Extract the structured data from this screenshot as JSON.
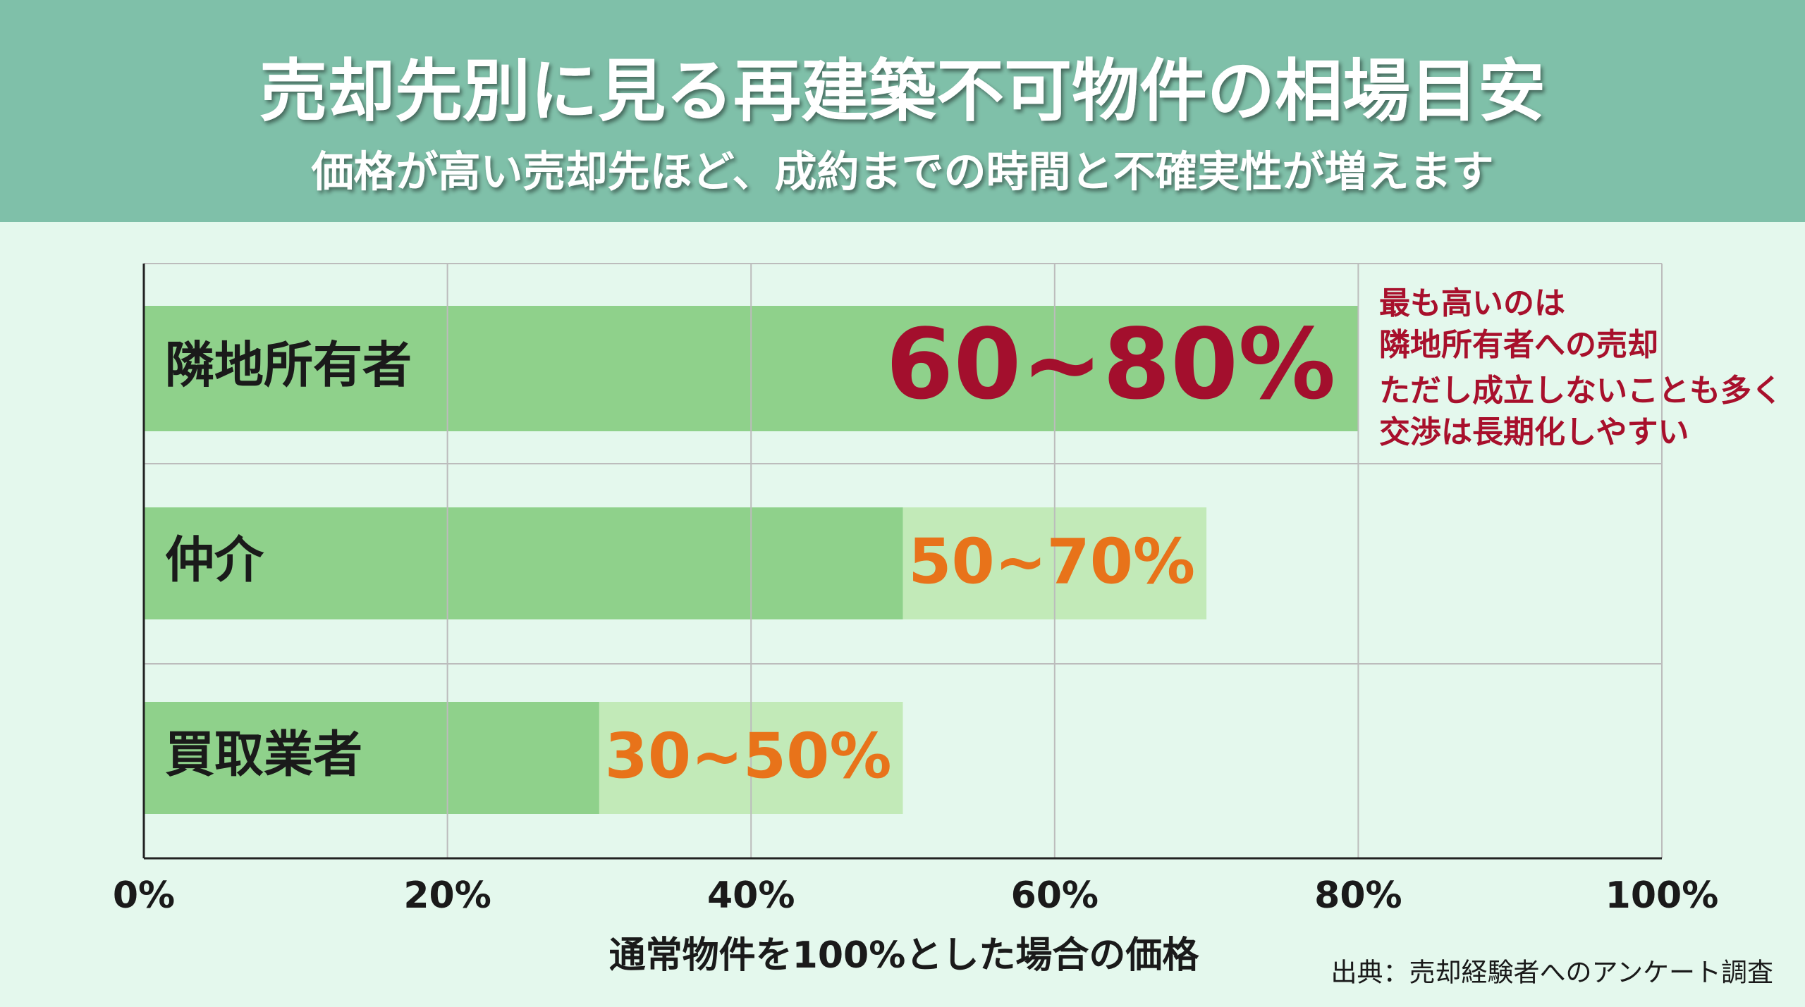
{
  "chart_data": {
    "type": "range-bar",
    "orientation": "horizontal",
    "title": "売却先別に見る再建築不可物件の相場目安",
    "subtitle": "価格が高い売却先ほど、成約までの時間と不確実性が増えます",
    "categories": [
      "隣地所有者",
      "仲介",
      "買取業者"
    ],
    "low": [
      60,
      50,
      30
    ],
    "high": [
      80,
      70,
      50
    ],
    "value_labels": [
      "60~80%",
      "50~70%",
      "30~50%"
    ],
    "colors": [
      "#8fd18b",
      "#c2eab8"
    ],
    "label_colors": [
      "#a30f2d",
      "#e8731a",
      "#e8731a"
    ],
    "xlim": [
      0,
      100
    ],
    "xticks": [
      {
        "value": 0,
        "label": "0%"
      },
      {
        "value": 20,
        "label": "20%"
      },
      {
        "value": 40,
        "label": "40%"
      },
      {
        "value": 60,
        "label": "60%"
      },
      {
        "value": 80,
        "label": "80%"
      },
      {
        "value": 100,
        "label": "100%"
      }
    ],
    "xlabel": "通常物件を100%とした場合の価格",
    "grid": true,
    "annotation": [
      "最も高いのは",
      "隣地所有者への売却",
      "ただし成立しないことも多く",
      "交渉は長期化しやすい"
    ],
    "source": "出典：売却経験者へのアンケート調査"
  }
}
